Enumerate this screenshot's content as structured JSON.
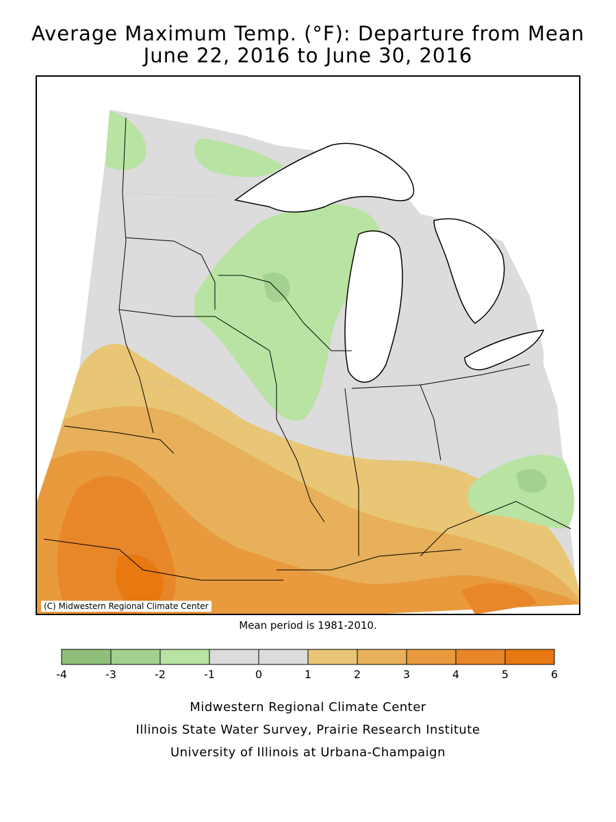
{
  "title_line1": "Average Maximum Temp. (°F): Departure from Mean",
  "title_line2": "June 22, 2016 to June 30, 2016",
  "copyright": "(C) Midwestern Regional Climate Center",
  "mean_period": "Mean period is 1981-2010.",
  "legend": {
    "ticks": [
      "-4",
      "-3",
      "-2",
      "-1",
      "0",
      "1",
      "2",
      "3",
      "4",
      "5",
      "6"
    ],
    "colors": [
      "#8fbf7a",
      "#a3d18f",
      "#b8e3a3",
      "#dcdcdc",
      "#dcdcdc",
      "#e8c676",
      "#e8b05a",
      "#e89a3c",
      "#e8862a",
      "#e87810"
    ]
  },
  "credits": [
    "Midwestern Regional Climate Center",
    "Illinois State Water Survey, Prairie Research Institute",
    "University of Illinois at Urbana-Champaign"
  ],
  "palette": {
    "neutral": "#dcdcdc",
    "cool_light": "#b8e3a3",
    "cool_mid": "#a3d18f",
    "cool_dark": "#8fbf7a",
    "warm1": "#e8c676",
    "warm2": "#e8b05a",
    "warm3": "#e89a3c",
    "warm4": "#e8862a",
    "warm5": "#e87810",
    "water": "#ffffff"
  }
}
